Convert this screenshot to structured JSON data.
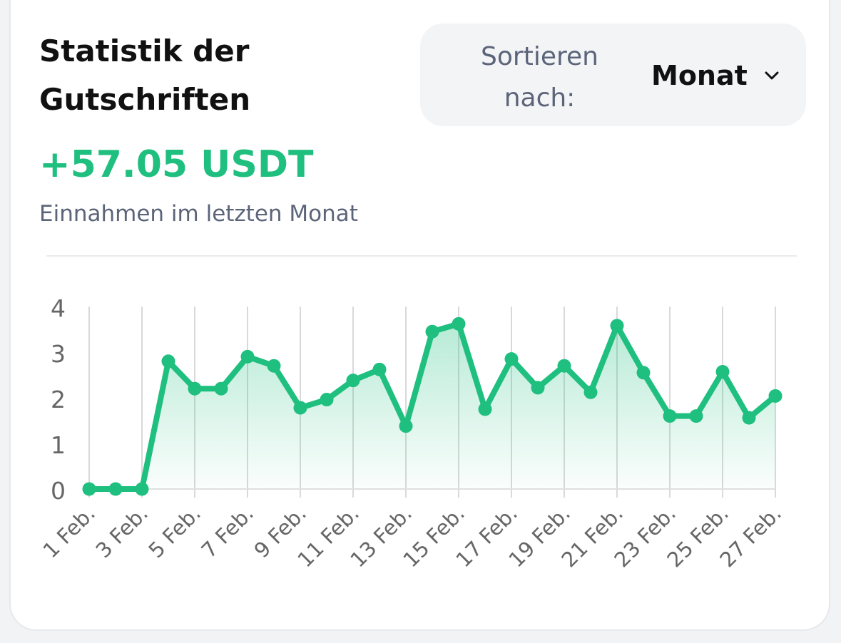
{
  "header": {
    "title": "Statistik der Gutschriften",
    "sort_label": "Sortieren nach:",
    "sort_value": "Monat",
    "amount": "+57.05 USDT",
    "subtitle": "Einnahmen im letzten Monat"
  },
  "colors": {
    "accent": "#1fbf7f",
    "fill": "#1fbf7f",
    "grid": "#d9d9d9",
    "muted": "#5b6479"
  },
  "icons": {
    "sort_chevron": "chevron-down-icon"
  },
  "chart_data": {
    "type": "area",
    "title": "",
    "xlabel": "",
    "ylabel": "",
    "ylim": [
      0,
      4
    ],
    "yticks": [
      0,
      1,
      2,
      3,
      4
    ],
    "grid": true,
    "x": [
      "1 Feb.",
      "2 Feb.",
      "3 Feb.",
      "4 Feb.",
      "5 Feb.",
      "6 Feb.",
      "7 Feb.",
      "8 Feb.",
      "9 Feb.",
      "10 Feb.",
      "11 Feb.",
      "12 Feb.",
      "13 Feb.",
      "14 Feb.",
      "15 Feb.",
      "16 Feb.",
      "17 Feb.",
      "18 Feb.",
      "19 Feb.",
      "20 Feb.",
      "21 Feb.",
      "22 Feb.",
      "23 Feb.",
      "24 Feb.",
      "25 Feb.",
      "26 Feb.",
      "27 Feb."
    ],
    "xtick_labels": [
      "1 Feb.",
      "3 Feb.",
      "5 Feb.",
      "7 Feb.",
      "9 Feb.",
      "11 Feb.",
      "13 Feb.",
      "15 Feb.",
      "17 Feb.",
      "19 Feb.",
      "21 Feb.",
      "23 Feb.",
      "25 Feb.",
      "27 Feb."
    ],
    "series": [
      {
        "values": [
          0,
          0,
          0,
          2.8,
          2.2,
          2.2,
          2.9,
          2.7,
          1.78,
          1.96,
          2.38,
          2.62,
          1.38,
          3.45,
          3.62,
          1.75,
          2.85,
          2.22,
          2.7,
          2.12,
          3.58,
          2.55,
          1.6,
          1.6,
          2.57,
          1.56,
          2.04
        ]
      }
    ]
  }
}
